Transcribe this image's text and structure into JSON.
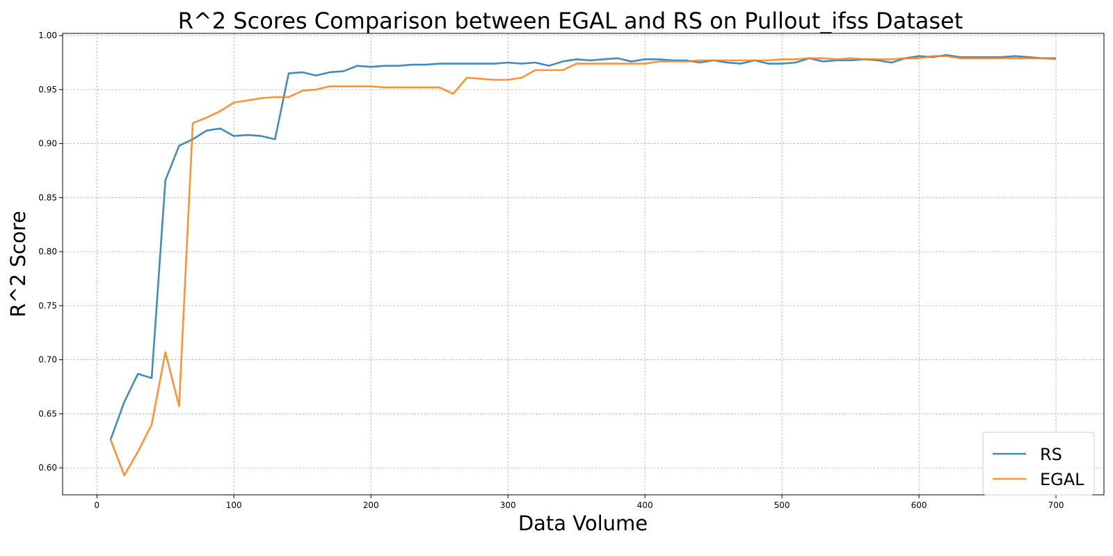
{
  "chart_data": {
    "type": "line",
    "title": "R^2 Scores Comparison between EGAL and RS on Pullout_ifss Dataset",
    "xlabel": "Data Volume",
    "ylabel": "R^2 Score",
    "xlim": [
      -25,
      735
    ],
    "ylim": [
      0.575,
      1.002
    ],
    "xticks": [
      0,
      100,
      200,
      300,
      400,
      500,
      600,
      700
    ],
    "xtick_labels": [
      "0",
      "100",
      "200",
      "300",
      "400",
      "500",
      "600",
      "700"
    ],
    "yticks": [
      0.6,
      0.65,
      0.7,
      0.75,
      0.8,
      0.85,
      0.9,
      0.95,
      1.0
    ],
    "ytick_labels": [
      "0.60",
      "0.65",
      "0.70",
      "0.75",
      "0.80",
      "0.85",
      "0.90",
      "0.95",
      "1.00"
    ],
    "grid": true,
    "legend_position": "lower-right",
    "x": [
      10,
      20,
      30,
      40,
      50,
      60,
      70,
      80,
      90,
      100,
      110,
      120,
      130,
      140,
      150,
      160,
      170,
      180,
      190,
      200,
      210,
      220,
      230,
      240,
      250,
      260,
      270,
      280,
      290,
      300,
      310,
      320,
      330,
      340,
      350,
      360,
      370,
      380,
      390,
      400,
      410,
      420,
      430,
      440,
      450,
      460,
      470,
      480,
      490,
      500,
      510,
      520,
      530,
      540,
      550,
      560,
      570,
      580,
      590,
      600,
      610,
      620,
      630,
      640,
      650,
      660,
      670,
      680,
      690,
      700
    ],
    "series": [
      {
        "name": "RS",
        "color": "#1f77b4",
        "values": [
          0.626,
          0.661,
          0.687,
          0.683,
          0.866,
          0.898,
          0.904,
          0.912,
          0.914,
          0.907,
          0.908,
          0.907,
          0.904,
          0.965,
          0.966,
          0.963,
          0.966,
          0.967,
          0.972,
          0.971,
          0.972,
          0.972,
          0.973,
          0.973,
          0.974,
          0.974,
          0.974,
          0.974,
          0.974,
          0.975,
          0.974,
          0.975,
          0.972,
          0.976,
          0.978,
          0.977,
          0.978,
          0.979,
          0.976,
          0.978,
          0.978,
          0.977,
          0.977,
          0.975,
          0.977,
          0.975,
          0.974,
          0.977,
          0.974,
          0.974,
          0.975,
          0.979,
          0.976,
          0.977,
          0.977,
          0.978,
          0.977,
          0.975,
          0.979,
          0.981,
          0.98,
          0.982,
          0.98,
          0.98,
          0.98,
          0.98,
          0.981,
          0.98,
          0.979,
          0.979
        ]
      },
      {
        "name": "EGAL",
        "color": "#ff7f0e",
        "values": [
          0.626,
          0.593,
          0.615,
          0.64,
          0.707,
          0.657,
          0.919,
          0.924,
          0.93,
          0.938,
          0.94,
          0.942,
          0.943,
          0.943,
          0.949,
          0.95,
          0.953,
          0.953,
          0.953,
          0.953,
          0.952,
          0.952,
          0.952,
          0.952,
          0.952,
          0.946,
          0.961,
          0.96,
          0.959,
          0.959,
          0.961,
          0.968,
          0.968,
          0.968,
          0.974,
          0.974,
          0.974,
          0.974,
          0.974,
          0.974,
          0.976,
          0.976,
          0.976,
          0.977,
          0.977,
          0.977,
          0.977,
          0.977,
          0.977,
          0.978,
          0.978,
          0.979,
          0.979,
          0.978,
          0.979,
          0.978,
          0.978,
          0.978,
          0.979,
          0.979,
          0.981,
          0.981,
          0.979,
          0.979,
          0.979,
          0.979,
          0.979,
          0.979,
          0.979,
          0.978
        ]
      }
    ]
  }
}
